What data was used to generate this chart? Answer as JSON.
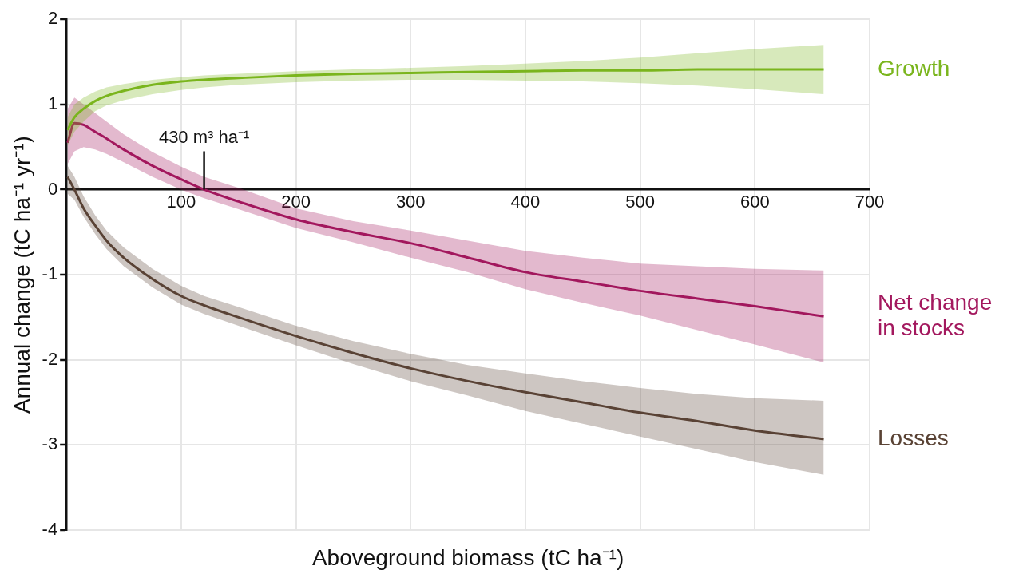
{
  "chart_data": {
    "type": "line",
    "xlabel": "Aboveground biomass (tC ha⁻¹)",
    "ylabel": "Annual change (tC ha⁻¹ yr⁻¹)",
    "x": [
      1,
      7,
      15,
      25,
      35,
      50,
      75,
      100,
      120,
      150,
      200,
      250,
      300,
      350,
      400,
      450,
      500,
      550,
      600,
      660
    ],
    "series": [
      {
        "name": "Growth",
        "color": "#7ab51d",
        "values": [
          0.7,
          0.85,
          0.95,
          1.04,
          1.1,
          1.16,
          1.23,
          1.27,
          1.29,
          1.31,
          1.34,
          1.36,
          1.37,
          1.38,
          1.39,
          1.4,
          1.4,
          1.41,
          1.41,
          1.41
        ],
        "lower": [
          0.52,
          0.68,
          0.8,
          0.92,
          0.99,
          1.05,
          1.12,
          1.17,
          1.2,
          1.23,
          1.26,
          1.28,
          1.29,
          1.29,
          1.28,
          1.27,
          1.25,
          1.22,
          1.18,
          1.12
        ],
        "upper": [
          0.85,
          1.0,
          1.08,
          1.15,
          1.2,
          1.24,
          1.29,
          1.32,
          1.34,
          1.36,
          1.39,
          1.41,
          1.43,
          1.45,
          1.48,
          1.51,
          1.55,
          1.6,
          1.65,
          1.7
        ]
      },
      {
        "name": "Net change in stocks",
        "color": "#a3185e",
        "values": [
          0.55,
          0.78,
          0.76,
          0.68,
          0.6,
          0.47,
          0.28,
          0.12,
          0.0,
          -0.14,
          -0.35,
          -0.5,
          -0.63,
          -0.8,
          -0.97,
          -1.08,
          -1.19,
          -1.28,
          -1.37,
          -1.49
        ],
        "lower": [
          0.3,
          0.45,
          0.5,
          0.47,
          0.42,
          0.32,
          0.15,
          0.0,
          -0.1,
          -0.23,
          -0.45,
          -0.62,
          -0.8,
          -0.97,
          -1.17,
          -1.33,
          -1.48,
          -1.65,
          -1.82,
          -2.03
        ],
        "upper": [
          0.95,
          1.08,
          1.0,
          0.9,
          0.8,
          0.65,
          0.44,
          0.27,
          0.15,
          0.02,
          -0.22,
          -0.37,
          -0.48,
          -0.6,
          -0.72,
          -0.8,
          -0.87,
          -0.9,
          -0.93,
          -0.95
        ]
      },
      {
        "name": "Losses",
        "color": "#5a4335",
        "values": [
          0.15,
          0.0,
          -0.22,
          -0.42,
          -0.6,
          -0.8,
          -1.05,
          -1.25,
          -1.36,
          -1.5,
          -1.72,
          -1.92,
          -2.1,
          -2.25,
          -2.38,
          -2.5,
          -2.62,
          -2.72,
          -2.83,
          -2.93
        ],
        "lower": [
          -0.05,
          -0.12,
          -0.32,
          -0.52,
          -0.7,
          -0.9,
          -1.15,
          -1.35,
          -1.46,
          -1.6,
          -1.83,
          -2.05,
          -2.25,
          -2.42,
          -2.6,
          -2.75,
          -2.9,
          -3.05,
          -3.2,
          -3.35
        ],
        "upper": [
          0.28,
          0.15,
          -0.08,
          -0.3,
          -0.48,
          -0.68,
          -0.93,
          -1.13,
          -1.25,
          -1.38,
          -1.6,
          -1.78,
          -1.93,
          -2.06,
          -2.16,
          -2.25,
          -2.33,
          -2.4,
          -2.45,
          -2.48
        ]
      }
    ],
    "xlim": [
      0,
      700
    ],
    "xticks": [
      100,
      200,
      300,
      400,
      500,
      600,
      700
    ],
    "ylim": [
      -4,
      2
    ],
    "yticks": [
      -4,
      -3,
      -2,
      -1,
      0,
      1,
      2
    ],
    "annotations": [
      {
        "text": "430 m³ ha⁻¹",
        "x": 120,
        "y": 0
      }
    ],
    "grid": true,
    "marker": "none",
    "line_style": "solid",
    "legend": false
  }
}
